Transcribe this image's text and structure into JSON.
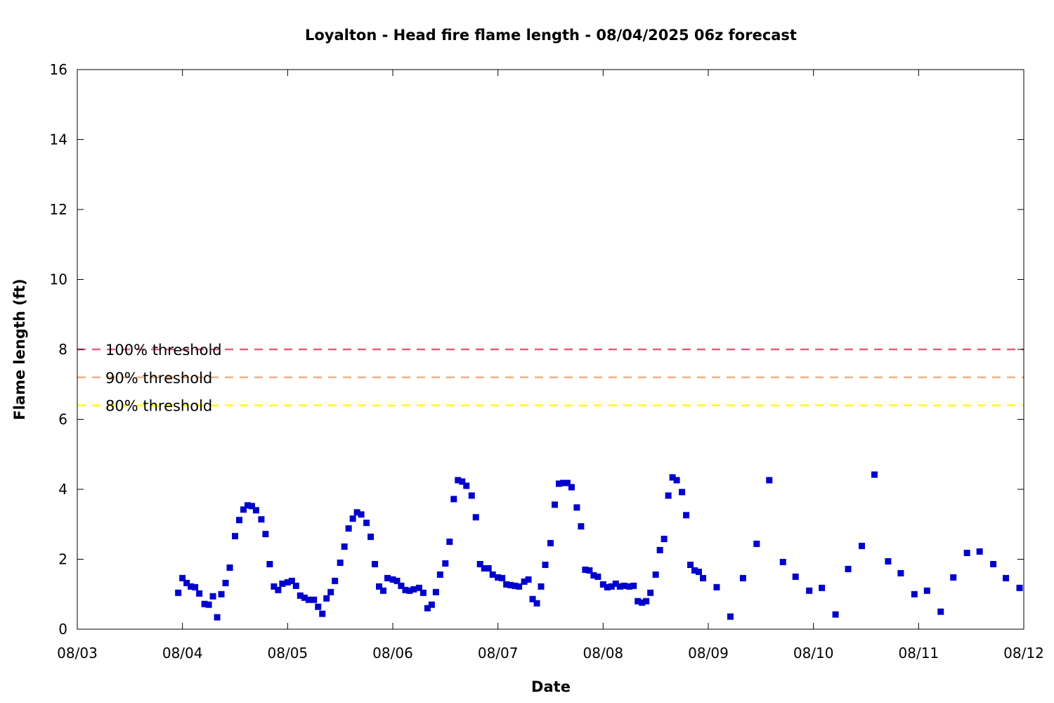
{
  "chart_data": {
    "type": "scatter",
    "title": "Loyalton - Head fire flame length - 08/04/2025 06z forecast",
    "xlabel": "Date",
    "ylabel": "Flame length (ft)",
    "x_ticks": [
      "08/03",
      "08/04",
      "08/05",
      "08/06",
      "08/07",
      "08/08",
      "08/09",
      "08/10",
      "08/11",
      "08/12"
    ],
    "xlim": [
      "08/03 00z",
      "08/12 00z"
    ],
    "y_ticks": [
      0,
      2,
      4,
      6,
      8,
      10,
      12,
      14,
      16
    ],
    "ylim": [
      0,
      16
    ],
    "grid": false,
    "point_color": "#0000cc",
    "thresholds": [
      {
        "label": "100% threshold",
        "value": 8.0,
        "color": "#e0607e"
      },
      {
        "label": "90% threshold",
        "value": 7.2,
        "color": "#f0b080"
      },
      {
        "label": "80% threshold",
        "value": 6.4,
        "color": "#ffff00"
      }
    ],
    "series": [
      {
        "x_unit": "days since 08/03 00z",
        "points": [
          [
            0.96,
            1.04
          ],
          [
            1.0,
            1.46
          ],
          [
            1.04,
            1.32
          ],
          [
            1.08,
            1.22
          ],
          [
            1.12,
            1.2
          ],
          [
            1.16,
            1.02
          ],
          [
            1.21,
            0.72
          ],
          [
            1.25,
            0.7
          ],
          [
            1.29,
            0.94
          ],
          [
            1.33,
            0.34
          ],
          [
            1.37,
            1.0
          ],
          [
            1.41,
            1.32
          ],
          [
            1.45,
            1.76
          ],
          [
            1.5,
            2.66
          ],
          [
            1.54,
            3.12
          ],
          [
            1.58,
            3.42
          ],
          [
            1.62,
            3.54
          ],
          [
            1.66,
            3.52
          ],
          [
            1.7,
            3.4
          ],
          [
            1.75,
            3.14
          ],
          [
            1.79,
            2.72
          ],
          [
            1.83,
            1.86
          ],
          [
            1.87,
            1.22
          ],
          [
            1.91,
            1.12
          ],
          [
            1.95,
            1.3
          ],
          [
            2.0,
            1.34
          ],
          [
            2.04,
            1.38
          ],
          [
            2.08,
            1.24
          ],
          [
            2.12,
            0.96
          ],
          [
            2.16,
            0.9
          ],
          [
            2.2,
            0.84
          ],
          [
            2.25,
            0.84
          ],
          [
            2.29,
            0.64
          ],
          [
            2.33,
            0.44
          ],
          [
            2.37,
            0.88
          ],
          [
            2.41,
            1.06
          ],
          [
            2.45,
            1.38
          ],
          [
            2.5,
            1.9
          ],
          [
            2.54,
            2.36
          ],
          [
            2.58,
            2.88
          ],
          [
            2.62,
            3.16
          ],
          [
            2.66,
            3.34
          ],
          [
            2.7,
            3.28
          ],
          [
            2.75,
            3.04
          ],
          [
            2.79,
            2.64
          ],
          [
            2.83,
            1.86
          ],
          [
            2.87,
            1.22
          ],
          [
            2.91,
            1.1
          ],
          [
            2.95,
            1.46
          ],
          [
            3.0,
            1.42
          ],
          [
            3.04,
            1.38
          ],
          [
            3.08,
            1.24
          ],
          [
            3.12,
            1.12
          ],
          [
            3.16,
            1.1
          ],
          [
            3.2,
            1.14
          ],
          [
            3.25,
            1.18
          ],
          [
            3.29,
            1.04
          ],
          [
            3.33,
            0.6
          ],
          [
            3.37,
            0.7
          ],
          [
            3.41,
            1.06
          ],
          [
            3.45,
            1.56
          ],
          [
            3.5,
            1.88
          ],
          [
            3.54,
            2.5
          ],
          [
            3.58,
            3.72
          ],
          [
            3.62,
            4.26
          ],
          [
            3.66,
            4.22
          ],
          [
            3.7,
            4.1
          ],
          [
            3.75,
            3.82
          ],
          [
            3.79,
            3.2
          ],
          [
            3.83,
            1.86
          ],
          [
            3.87,
            1.74
          ],
          [
            3.91,
            1.74
          ],
          [
            3.95,
            1.56
          ],
          [
            4.0,
            1.48
          ],
          [
            4.04,
            1.46
          ],
          [
            4.08,
            1.28
          ],
          [
            4.12,
            1.26
          ],
          [
            4.16,
            1.24
          ],
          [
            4.2,
            1.22
          ],
          [
            4.25,
            1.36
          ],
          [
            4.29,
            1.42
          ],
          [
            4.33,
            0.86
          ],
          [
            4.37,
            0.74
          ],
          [
            4.41,
            1.22
          ],
          [
            4.45,
            1.84
          ],
          [
            4.5,
            2.46
          ],
          [
            4.54,
            3.56
          ],
          [
            4.58,
            4.16
          ],
          [
            4.62,
            4.18
          ],
          [
            4.66,
            4.18
          ],
          [
            4.7,
            4.06
          ],
          [
            4.75,
            3.48
          ],
          [
            4.79,
            2.94
          ],
          [
            4.83,
            1.7
          ],
          [
            4.87,
            1.68
          ],
          [
            4.91,
            1.54
          ],
          [
            4.95,
            1.5
          ],
          [
            5.0,
            1.28
          ],
          [
            5.04,
            1.2
          ],
          [
            5.08,
            1.22
          ],
          [
            5.12,
            1.3
          ],
          [
            5.16,
            1.22
          ],
          [
            5.2,
            1.24
          ],
          [
            5.25,
            1.22
          ],
          [
            5.29,
            1.24
          ],
          [
            5.33,
            0.8
          ],
          [
            5.37,
            0.76
          ],
          [
            5.41,
            0.8
          ],
          [
            5.45,
            1.04
          ],
          [
            5.5,
            1.56
          ],
          [
            5.54,
            2.26
          ],
          [
            5.58,
            2.58
          ],
          [
            5.62,
            3.82
          ],
          [
            5.66,
            4.34
          ],
          [
            5.7,
            4.26
          ],
          [
            5.75,
            3.92
          ],
          [
            5.79,
            3.26
          ],
          [
            5.83,
            1.84
          ],
          [
            5.87,
            1.68
          ],
          [
            5.91,
            1.64
          ],
          [
            5.95,
            1.46
          ],
          [
            6.08,
            1.2
          ],
          [
            6.21,
            0.36
          ],
          [
            6.33,
            1.46
          ],
          [
            6.46,
            2.44
          ],
          [
            6.58,
            4.26
          ],
          [
            6.71,
            1.92
          ],
          [
            6.83,
            1.5
          ],
          [
            6.96,
            1.1
          ],
          [
            7.08,
            1.18
          ],
          [
            7.21,
            0.42
          ],
          [
            7.33,
            1.72
          ],
          [
            7.46,
            2.38
          ],
          [
            7.58,
            4.42
          ],
          [
            7.71,
            1.94
          ],
          [
            7.83,
            1.6
          ],
          [
            7.96,
            1.0
          ],
          [
            8.08,
            1.1
          ],
          [
            8.21,
            0.5
          ],
          [
            8.33,
            1.48
          ],
          [
            8.46,
            2.18
          ],
          [
            8.58,
            2.22
          ],
          [
            8.71,
            1.86
          ],
          [
            8.83,
            1.46
          ],
          [
            8.96,
            1.18
          ]
        ]
      }
    ]
  }
}
